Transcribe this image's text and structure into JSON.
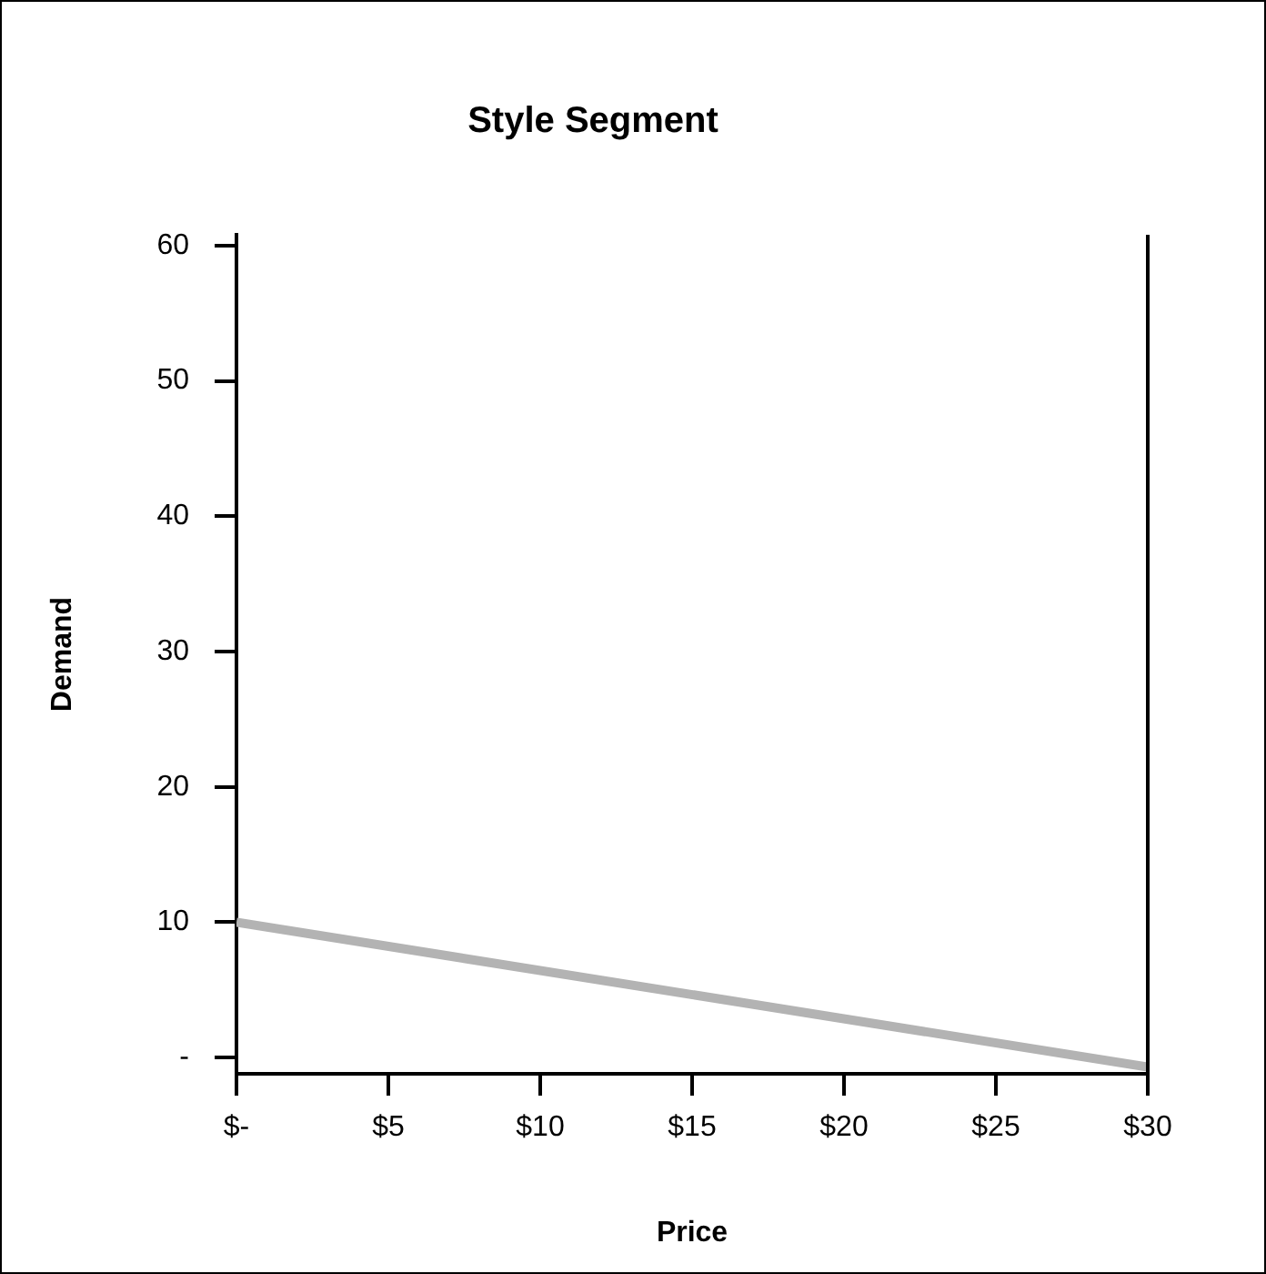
{
  "chart_data": {
    "type": "line",
    "title": "Style Segment",
    "xlabel": "Price",
    "ylabel": "Demand",
    "x": [
      0,
      30
    ],
    "series": [
      {
        "color": "#b3b3b3",
        "values": [
          10,
          -0.7
        ]
      }
    ],
    "xlim": [
      0,
      30
    ],
    "xticks": [
      {
        "value": 0,
        "label": "$-"
      },
      {
        "value": 5,
        "label": "$5"
      },
      {
        "value": 10,
        "label": "$10"
      },
      {
        "value": 15,
        "label": "$15"
      },
      {
        "value": 20,
        "label": "$20"
      },
      {
        "value": 25,
        "label": "$25"
      },
      {
        "value": 30,
        "label": "$30"
      }
    ],
    "ylim": [
      -1.2,
      60.8
    ],
    "yticks": [
      {
        "value": 0,
        "label": "-"
      },
      10,
      20,
      30,
      40,
      50,
      60
    ],
    "grid": false,
    "legend": false,
    "marker": "none",
    "line_style": "solid"
  }
}
